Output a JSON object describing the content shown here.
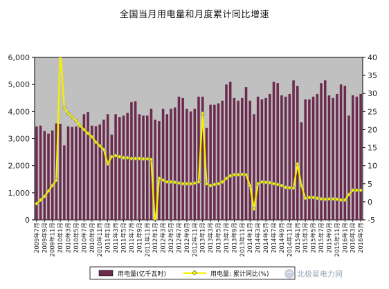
{
  "chart_data": {
    "type": "bar",
    "title": "全国当月用电量和月度累计同比增速",
    "xlabel": "",
    "ylabel": "",
    "categories": [
      "2009年7月",
      "2009年8月",
      "2009年9月",
      "2009年10月",
      "2009年11月",
      "2009年12月",
      "2010年1月",
      "2010年2月",
      "2010年3月",
      "2010年4月",
      "2010年5月",
      "2010年6月",
      "2010年7月",
      "2010年8月",
      "2010年9月",
      "2010年10月",
      "2010年11月",
      "2010年12月",
      "2011年1月",
      "2011年2月",
      "2011年3月",
      "2011年4月",
      "2011年5月",
      "2011年6月",
      "2011年7月",
      "2011年8月",
      "2011年9月",
      "2011年10月",
      "2011年11月",
      "2011年12月",
      "2012年1月",
      "2012年2月",
      "2012年3月",
      "2012年4月",
      "2012年5月",
      "2012年6月",
      "2012年7月",
      "2012年8月",
      "2012年9月",
      "2012年10月",
      "2012年11月",
      "2012年12月",
      "2013年1月",
      "2013年2月",
      "2013年3月",
      "2013年4月",
      "2013年5月",
      "2013年6月",
      "2013年7月",
      "2013年8月",
      "2013年9月",
      "2013年10月",
      "2013年11月",
      "2013年12月",
      "2014年1月",
      "2014年2月",
      "2014年3月",
      "2014年4月",
      "2014年5月",
      "2014年6月",
      "2014年7月",
      "2014年8月",
      "2014年9月",
      "2014年10月",
      "2014年11月",
      "2014年12月",
      "2015年1月",
      "2015年2月",
      "2015年3月",
      "2015年4月",
      "2015年5月",
      "2015年6月",
      "2015年7月",
      "2015年8月",
      "2015年9月",
      "2015年10月",
      "2015年11月",
      "2015年12月",
      "2016年1月",
      "2016年2月",
      "2016年3月",
      "2016年4月",
      "2016年5月"
    ],
    "x_tick_labels": [
      "2009年7月",
      "2009年9月",
      "2009年11月",
      "2010年1月",
      "2010年3月",
      "2010年5月",
      "2010年7月",
      "2010年9月",
      "2010年11月",
      "2011年1月",
      "2011年3月",
      "2011年5月",
      "2011年7月",
      "2011年9月",
      "2011年11月",
      "2012年1月",
      "2012年3月",
      "2012年5月",
      "2012年7月",
      "2012年9月",
      "2012年11月",
      "2013年1月",
      "2013年3月",
      "2013年5月",
      "2013年7月",
      "2013年9月",
      "2013年11月",
      "2014年1月",
      "2014年3月",
      "2014年5月",
      "2014年7月",
      "2014年9月",
      "2014年11月",
      "2015年1月",
      "2015年3月",
      "2015年5月",
      "2015年7月",
      "2015年9月",
      "2015年11月",
      "2016年1月",
      "2016年3月",
      "2016年5月"
    ],
    "y_left_ticks": [
      "0",
      "1,000",
      "2,000",
      "3,000",
      "4,000",
      "5,000",
      "6,000"
    ],
    "y_right_ticks": [
      "-5",
      "0",
      "5",
      "10",
      "15",
      "20",
      "25",
      "30",
      "35",
      "40"
    ],
    "ylim_left": [
      0,
      6000
    ],
    "ylim_right": [
      -5,
      40
    ],
    "grid": false,
    "legend_position": "bottom",
    "series": [
      {
        "name": "用电量(亿千瓦时)",
        "type": "bar",
        "axis": "left",
        "color": "#6b2a4e",
        "values": [
          3450,
          3480,
          3280,
          3180,
          3300,
          3560,
          3550,
          2750,
          3450,
          3430,
          3450,
          3520,
          3900,
          3980,
          3480,
          3460,
          3520,
          3700,
          3900,
          3150,
          3900,
          3800,
          3850,
          3950,
          4350,
          4380,
          3900,
          3850,
          3850,
          4100,
          3700,
          3650,
          4100,
          3900,
          4100,
          4150,
          4550,
          4500,
          4100,
          4000,
          4100,
          4550,
          4550,
          3400,
          4250,
          4250,
          4300,
          4400,
          5000,
          5100,
          4500,
          4400,
          4500,
          4900,
          4400,
          3900,
          4550,
          4450,
          4500,
          4650,
          5100,
          5050,
          4600,
          4550,
          4650,
          5150,
          4950,
          3600,
          4450,
          4450,
          4550,
          4650,
          5050,
          5150,
          4600,
          4500,
          4650,
          5000,
          4950,
          3850,
          4600,
          4550,
          4650
        ]
      },
      {
        "name": "用电量: 累计同比(%)",
        "type": "line",
        "axis": "right",
        "color": "#f4f000",
        "values": [
          -0.5,
          0.5,
          1.5,
          3.0,
          4.5,
          6.0,
          42.0,
          26.0,
          24.5,
          23.5,
          22.5,
          21.0,
          20.0,
          19.0,
          18.0,
          16.5,
          15.5,
          14.5,
          10.5,
          12.5,
          12.8,
          12.5,
          12.2,
          12.2,
          12.0,
          12.0,
          12.0,
          11.9,
          11.9,
          11.7,
          -7.0,
          6.5,
          6.0,
          5.5,
          5.5,
          5.4,
          5.2,
          5.0,
          5.0,
          5.0,
          5.2,
          5.5,
          24.5,
          5.0,
          4.5,
          4.8,
          5.0,
          5.5,
          6.5,
          7.2,
          7.5,
          7.5,
          7.6,
          7.5,
          4.5,
          -2.0,
          5.0,
          5.5,
          5.4,
          5.3,
          5.0,
          4.8,
          4.5,
          4.0,
          3.9,
          3.8,
          10.5,
          4.5,
          1.0,
          1.2,
          1.2,
          1.0,
          0.8,
          0.7,
          0.8,
          0.8,
          0.7,
          0.5,
          0.5,
          2.0,
          3.2,
          3.2,
          3.2
        ]
      }
    ]
  },
  "watermark": {
    "text": "北极星电力网",
    "icon": "wechat-icon"
  }
}
